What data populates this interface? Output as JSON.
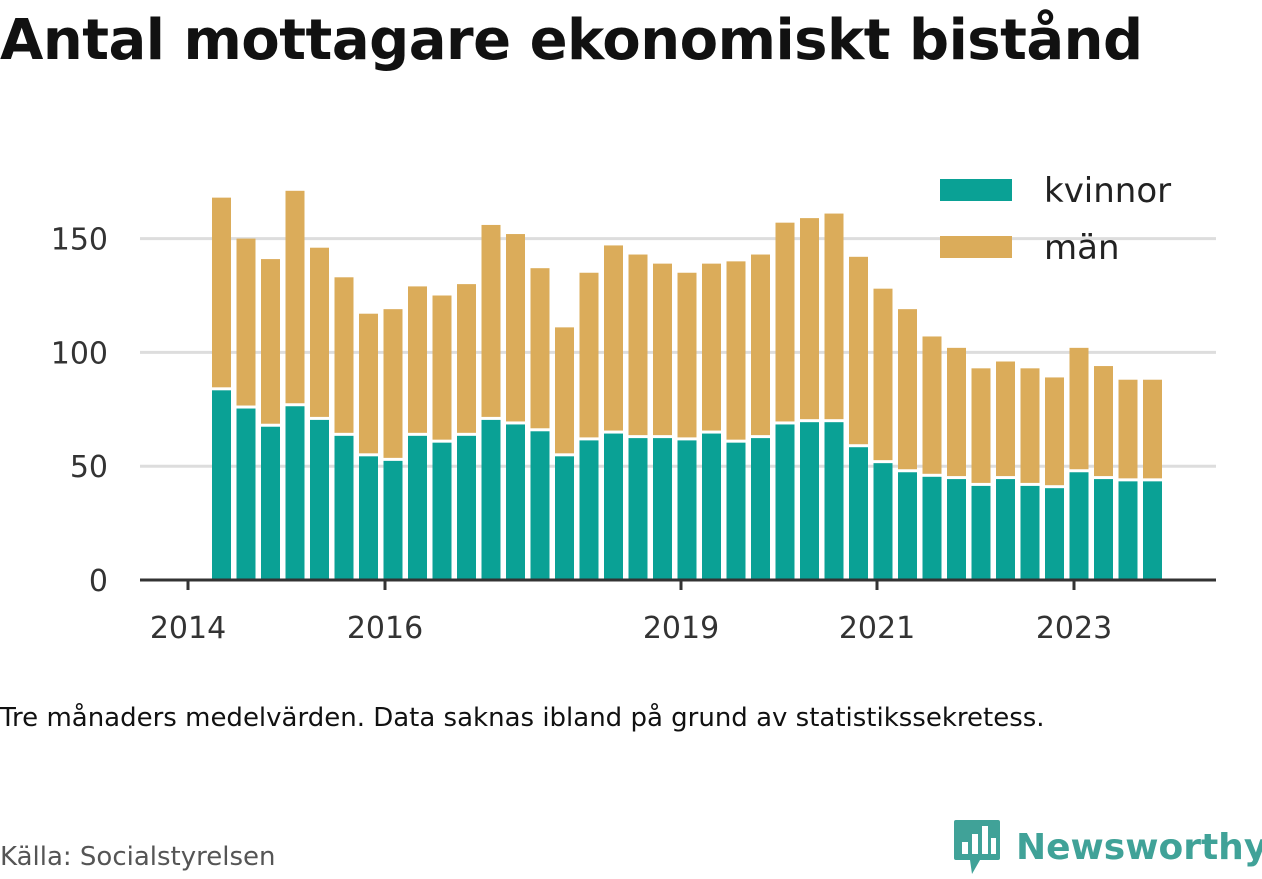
{
  "title": "Antal mottagare ekonomiskt bistånd",
  "note": "Tre månaders medelvärden. Data saknas ibland på grund av statistikssekretess.",
  "source": "Källa: Socialstyrelsen",
  "brand": {
    "name": "Newsworthy",
    "icon": "newsworthy-logo-icon",
    "color": "#40a298"
  },
  "colors": {
    "kvinnor": "#0aa195",
    "man": "#dbac5a",
    "grid": "#dddddd",
    "axis": "#333333"
  },
  "chart_data": {
    "type": "bar",
    "stacked": true,
    "ylim": [
      0,
      170
    ],
    "yticks": [
      0,
      50,
      100,
      150
    ],
    "xticks": [
      "2014",
      "2016",
      "2019",
      "2021",
      "2023"
    ],
    "grid": true,
    "legend_position": "top-right",
    "series": [
      {
        "name": "kvinnor",
        "values": [
          84,
          76,
          68,
          77,
          71,
          64,
          55,
          53,
          64,
          61,
          64,
          71,
          69,
          66,
          55,
          62,
          65,
          63,
          63,
          62,
          65,
          61,
          63,
          69,
          70,
          70,
          59,
          52,
          48,
          46,
          45,
          42,
          45,
          42,
          41,
          48,
          45,
          44,
          44
        ]
      },
      {
        "name": "män",
        "values": [
          84,
          74,
          73,
          94,
          75,
          69,
          62,
          66,
          65,
          64,
          66,
          85,
          83,
          71,
          56,
          73,
          82,
          80,
          76,
          73,
          74,
          79,
          80,
          88,
          89,
          91,
          83,
          76,
          71,
          61,
          57,
          51,
          51,
          51,
          48,
          54,
          49,
          44,
          44
        ]
      }
    ]
  }
}
